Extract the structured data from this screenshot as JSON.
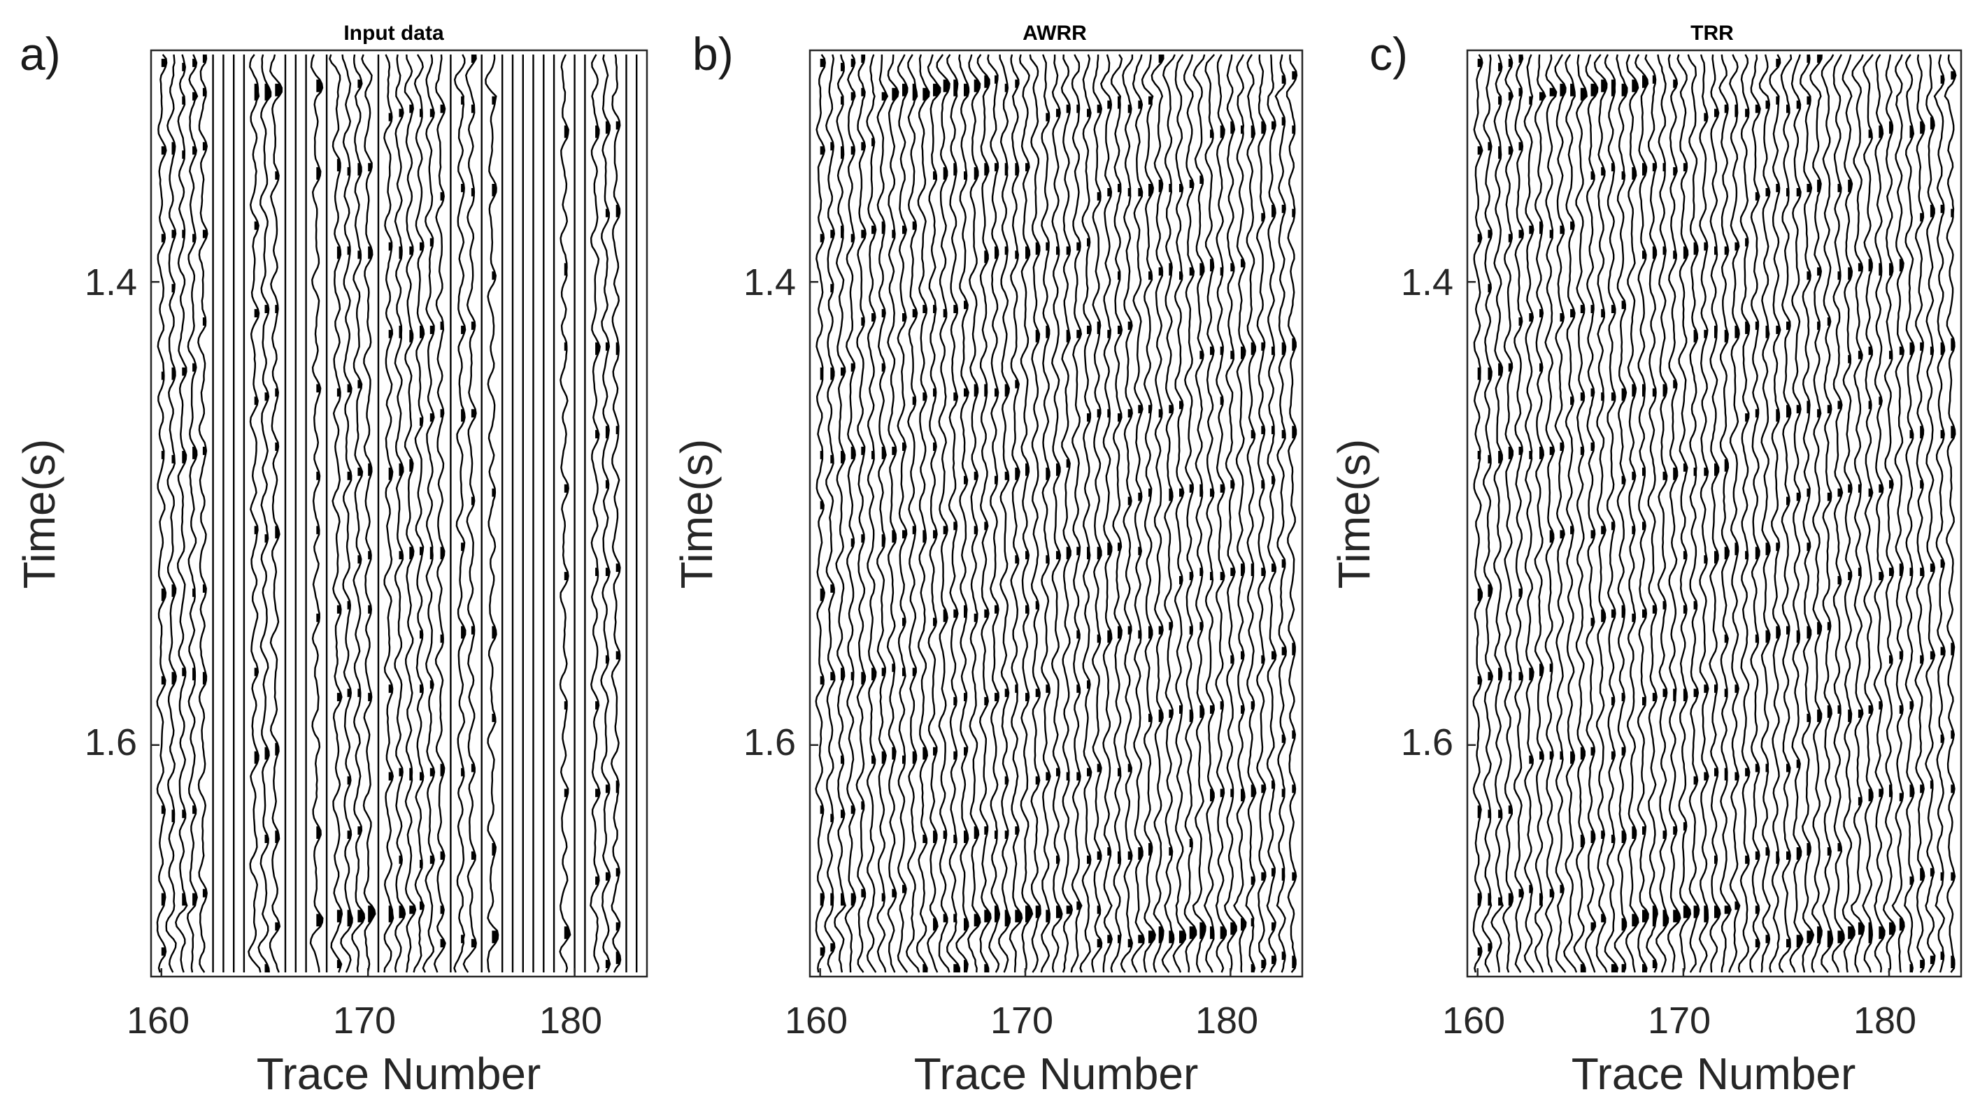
{
  "chart_data": [
    {
      "panel": "a)",
      "type": "seismic-wiggle",
      "title": "Input data",
      "xlabel": "Trace Number",
      "ylabel": "Time(s)",
      "xlim": [
        159.5,
        183.5
      ],
      "ylim": [
        1.3,
        1.7
      ],
      "xticks": [
        "160",
        "170",
        "180"
      ],
      "yticks": [
        "1.4",
        "1.6"
      ],
      "traces_per_unit": 2,
      "missing_traces": [
        162.5,
        163.0,
        163.5,
        164.0,
        166.0,
        166.5,
        167.0,
        168.0,
        170.5,
        174.0,
        175.5,
        176.5,
        177.0,
        177.5,
        178.0,
        178.5,
        179.0,
        180.0,
        180.5,
        182.5,
        183.0
      ]
    },
    {
      "panel": "b)",
      "type": "seismic-wiggle",
      "title": "AWRR",
      "xlabel": "Trace Number",
      "ylabel": "Time(s)",
      "xlim": [
        159.5,
        183.5
      ],
      "ylim": [
        1.3,
        1.7
      ],
      "xticks": [
        "160",
        "170",
        "180"
      ],
      "yticks": [
        "1.4",
        "1.6"
      ],
      "traces_per_unit": 2,
      "missing_traces": []
    },
    {
      "panel": "c)",
      "type": "seismic-wiggle",
      "title": "TRR",
      "xlabel": "Trace Number",
      "ylabel": "Time(s)",
      "xlim": [
        159.5,
        183.5
      ],
      "ylim": [
        1.3,
        1.7
      ],
      "xticks": [
        "160",
        "170",
        "180"
      ],
      "yticks": [
        "1.4",
        "1.6"
      ],
      "traces_per_unit": 2,
      "missing_traces": []
    }
  ]
}
